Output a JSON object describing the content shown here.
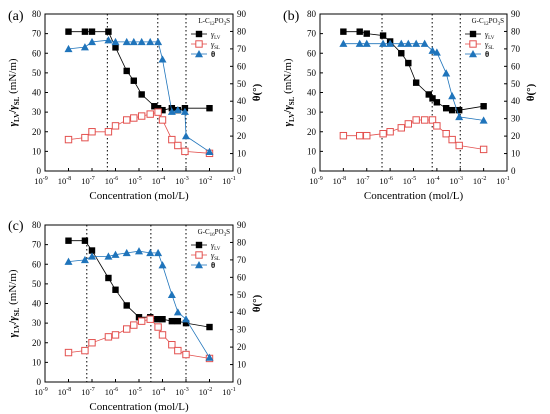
{
  "chart_data": [
    {
      "type": "line",
      "panel_label": "(a)",
      "legend_title": "L-C12PO3S",
      "legend_title_parts": {
        "pre": "L-C",
        "sub1": "12",
        "mid": "PO",
        "sub2": "3",
        "post": "S"
      },
      "xlabel": "Concentration (mol/L)",
      "ylabel_left": "γLV/γSL (mN/m)",
      "ylabel_right": "θ(°)",
      "xscale": "log",
      "xlim": [
        1e-09,
        0.1
      ],
      "ylim_left": [
        0,
        80
      ],
      "ylim_right": [
        0,
        90
      ],
      "x_tick_exponents": [
        -9,
        -8,
        -7,
        -6,
        -5,
        -4,
        -3,
        -2,
        -1
      ],
      "y_left_ticks": [
        0,
        10,
        20,
        30,
        40,
        50,
        60,
        70,
        80
      ],
      "y_right_ticks": [
        0,
        10,
        20,
        30,
        40,
        50,
        60,
        70,
        80,
        90
      ],
      "vlines": [
        4.5e-07,
        6.3e-05,
        0.001
      ],
      "series": [
        {
          "name": "γLV",
          "axis": "left",
          "marker": "square",
          "color": "#000000",
          "x": [
            1e-08,
            5e-08,
            1e-07,
            5e-07,
            1e-06,
            3e-06,
            6e-06,
            1.3e-05,
            4.5e-05,
            6.5e-05,
            0.0001,
            0.00025,
            0.00045,
            0.0009,
            0.01
          ],
          "y": [
            71,
            71,
            71,
            71,
            63,
            51,
            46,
            39,
            33,
            32,
            31,
            32,
            31,
            32,
            32
          ]
        },
        {
          "name": "γSL",
          "axis": "left",
          "marker": "open-square",
          "color": "#e3514f",
          "x": [
            1e-08,
            5e-08,
            1e-07,
            5e-07,
            1e-06,
            3e-06,
            6e-06,
            1.3e-05,
            3e-05,
            6.5e-05,
            0.0001,
            0.00025,
            0.00045,
            0.0009,
            0.01
          ],
          "y": [
            16,
            17,
            20,
            20,
            23,
            26,
            27,
            28,
            29,
            30,
            26,
            16,
            13,
            10,
            9
          ]
        },
        {
          "name": "θ",
          "axis": "right",
          "marker": "triangle",
          "color": "#1f74bb",
          "x": [
            1e-08,
            5e-08,
            1e-07,
            5e-07,
            1e-06,
            3e-06,
            6e-06,
            1.3e-05,
            3e-05,
            6.5e-05,
            0.0001,
            0.00025,
            0.00045,
            0.0009,
            0.001,
            0.01
          ],
          "y": [
            70,
            71,
            74,
            75,
            74,
            74,
            74,
            74,
            74,
            74,
            64,
            34,
            35,
            34,
            20,
            11
          ]
        }
      ]
    },
    {
      "type": "line",
      "panel_label": "(b)",
      "legend_title": "G-C12PO3S",
      "legend_title_parts": {
        "pre": "G-C",
        "sub1": "12",
        "mid": "PO",
        "sub2": "3",
        "post": "S"
      },
      "xlabel": "Concentration (mol/L)",
      "ylabel_left": "γLV/γSL (mN/m)",
      "ylabel_right": "θ(°)",
      "xscale": "log",
      "xlim": [
        1e-09,
        0.1
      ],
      "ylim_left": [
        0,
        80
      ],
      "ylim_right": [
        0,
        90
      ],
      "x_tick_exponents": [
        -9,
        -8,
        -7,
        -6,
        -5,
        -4,
        -3,
        -2,
        -1
      ],
      "y_left_ticks": [
        0,
        10,
        20,
        30,
        40,
        50,
        60,
        70,
        80
      ],
      "y_right_ticks": [
        0,
        10,
        20,
        30,
        40,
        50,
        60,
        70,
        80,
        90
      ],
      "vlines": [
        4.5e-07,
        6.3e-05,
        0.001
      ],
      "series": [
        {
          "name": "γLV",
          "axis": "left",
          "marker": "square",
          "color": "#000000",
          "x": [
            1e-08,
            5e-08,
            1e-07,
            5e-07,
            1e-06,
            3e-06,
            6e-06,
            1.3e-05,
            4.5e-05,
            6.5e-05,
            0.0001,
            0.00025,
            0.00045,
            0.0009,
            0.01
          ],
          "y": [
            71,
            71,
            70,
            69,
            66,
            60,
            55,
            45,
            39,
            37,
            35,
            32,
            31,
            31,
            33
          ]
        },
        {
          "name": "γSL",
          "axis": "left",
          "marker": "open-square",
          "color": "#e3514f",
          "x": [
            1e-08,
            5e-08,
            1e-07,
            5e-07,
            1e-06,
            3e-06,
            6e-06,
            1.3e-05,
            3e-05,
            6.5e-05,
            0.0001,
            0.00025,
            0.00045,
            0.0009,
            0.01
          ],
          "y": [
            18,
            18,
            18,
            19,
            20,
            22,
            24,
            26,
            26,
            26,
            23,
            19,
            16,
            13,
            11
          ]
        },
        {
          "name": "θ",
          "axis": "right",
          "marker": "triangle",
          "color": "#1f74bb",
          "x": [
            1e-08,
            5e-08,
            1e-07,
            5e-07,
            1e-06,
            3e-06,
            6e-06,
            1.3e-05,
            3e-05,
            6.5e-05,
            0.0001,
            0.00025,
            0.00045,
            0.0009,
            0.01
          ],
          "y": [
            73,
            73,
            73,
            73,
            73,
            73,
            73,
            73,
            73,
            69,
            68,
            56,
            43,
            31,
            29
          ]
        }
      ]
    },
    {
      "type": "line",
      "panel_label": "(c)",
      "legend_title": "G-C16PO3S",
      "legend_title_parts": {
        "pre": "G-C",
        "sub1": "16",
        "mid": "PO",
        "sub2": "3",
        "post": "S"
      },
      "xlabel": "Concentration (mol/L)",
      "ylabel_left": "γLV/γSL (mN/m)",
      "ylabel_right": "θ(°)",
      "xscale": "log",
      "xlim": [
        1e-09,
        0.1
      ],
      "ylim_left": [
        0,
        80
      ],
      "ylim_right": [
        0,
        90
      ],
      "x_tick_exponents": [
        -9,
        -8,
        -7,
        -6,
        -5,
        -4,
        -3,
        -2,
        -1
      ],
      "y_left_ticks": [
        0,
        10,
        20,
        30,
        40,
        50,
        60,
        70,
        80
      ],
      "y_right_ticks": [
        0,
        10,
        20,
        30,
        40,
        50,
        60,
        70,
        80,
        90
      ],
      "vlines": [
        6e-08,
        3.2e-05,
        0.001
      ],
      "series": [
        {
          "name": "γLV",
          "axis": "left",
          "marker": "square",
          "color": "#000000",
          "x": [
            1e-08,
            5e-08,
            1e-07,
            5e-07,
            1e-06,
            3e-06,
            1e-05,
            3e-05,
            6e-05,
            0.0001,
            0.00025,
            0.00045,
            0.001,
            0.01
          ],
          "y": [
            72,
            72,
            67,
            53,
            47,
            39,
            33,
            33,
            32,
            32,
            31,
            31,
            30,
            28
          ]
        },
        {
          "name": "γSL",
          "axis": "left",
          "marker": "open-square",
          "color": "#e3514f",
          "x": [
            1e-08,
            5e-08,
            1e-07,
            5e-07,
            1e-06,
            3e-06,
            6e-06,
            1.3e-05,
            3e-05,
            6.5e-05,
            0.0001,
            0.00025,
            0.00045,
            0.001,
            0.01
          ],
          "y": [
            15,
            16,
            20,
            23,
            24,
            27,
            29,
            31,
            32,
            28,
            24,
            19,
            16,
            14,
            12
          ]
        },
        {
          "name": "θ",
          "axis": "right",
          "marker": "triangle",
          "color": "#1f74bb",
          "x": [
            1e-08,
            5e-08,
            1e-07,
            5e-07,
            1e-06,
            3e-06,
            1e-05,
            3e-05,
            6.5e-05,
            0.0001,
            0.00025,
            0.00045,
            0.001,
            0.01
          ],
          "y": [
            69,
            70,
            72,
            72,
            73,
            74,
            75,
            74,
            74,
            67,
            50,
            40,
            36,
            14
          ]
        }
      ]
    }
  ]
}
